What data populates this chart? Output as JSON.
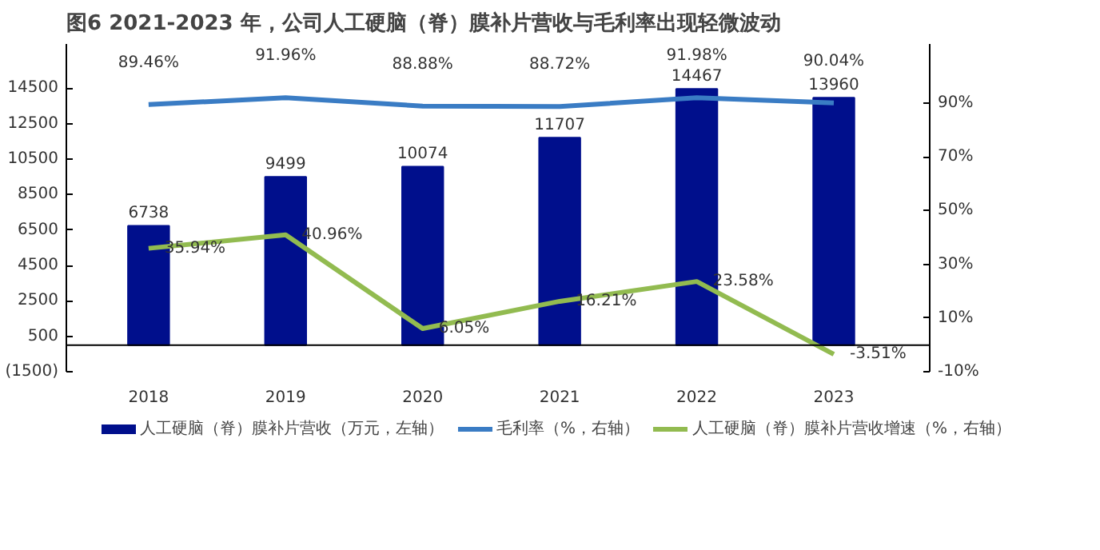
{
  "chart_data": {
    "type": "bar",
    "title": "图6  2021-2023 年，公司人工硬脑（脊）膜补片营收与毛利率出现轻微波动",
    "categories": [
      "2018",
      "2019",
      "2020",
      "2021",
      "2022",
      "2023"
    ],
    "series": [
      {
        "name": "人工硬脑（脊）膜补片营收（万元，左轴）",
        "color": "#000f8c",
        "values": [
          6738,
          9499,
          10074,
          11707,
          14467,
          13960
        ]
      },
      {
        "name": "毛利率（%，右轴）",
        "type": "line",
        "axis": "y2",
        "color": "#3a7cc4",
        "values": [
          89.46,
          91.96,
          88.88,
          88.72,
          91.98,
          90.04
        ],
        "value_labels": [
          "89.46%",
          "91.96%",
          "88.88%",
          "88.72%",
          "91.98%",
          "90.04%"
        ]
      },
      {
        "name": "人工硬脑（脊）膜补片营收增速（%，右轴）",
        "type": "line",
        "axis": "y2",
        "color": "#92bb50",
        "values": [
          35.94,
          40.96,
          6.05,
          16.21,
          23.58,
          -3.51
        ],
        "value_labels": [
          "35.94%",
          "40.96%",
          "6.05%",
          "16.21%",
          "23.58%",
          "-3.51%"
        ]
      }
    ],
    "ylim": [
      -1500,
      17000
    ],
    "yticks": [
      {
        "value": -1500,
        "label": "(1500)"
      },
      500,
      2500,
      4500,
      6500,
      8500,
      10500,
      12500,
      14500
    ],
    "y2lim": [
      -10,
      112
    ],
    "y2ticks": [
      {
        "value": -10,
        "label": "-10%"
      },
      {
        "value": 10,
        "label": "10%"
      },
      {
        "value": 30,
        "label": "30%"
      },
      {
        "value": 50,
        "label": "50%"
      },
      {
        "value": 70,
        "label": "70%"
      },
      {
        "value": 90,
        "label": "90%"
      }
    ],
    "ref_lines": [
      {
        "axis": "y",
        "value": 0,
        "color": "#000000"
      }
    ],
    "data_labels": true,
    "legend": "bottom"
  }
}
